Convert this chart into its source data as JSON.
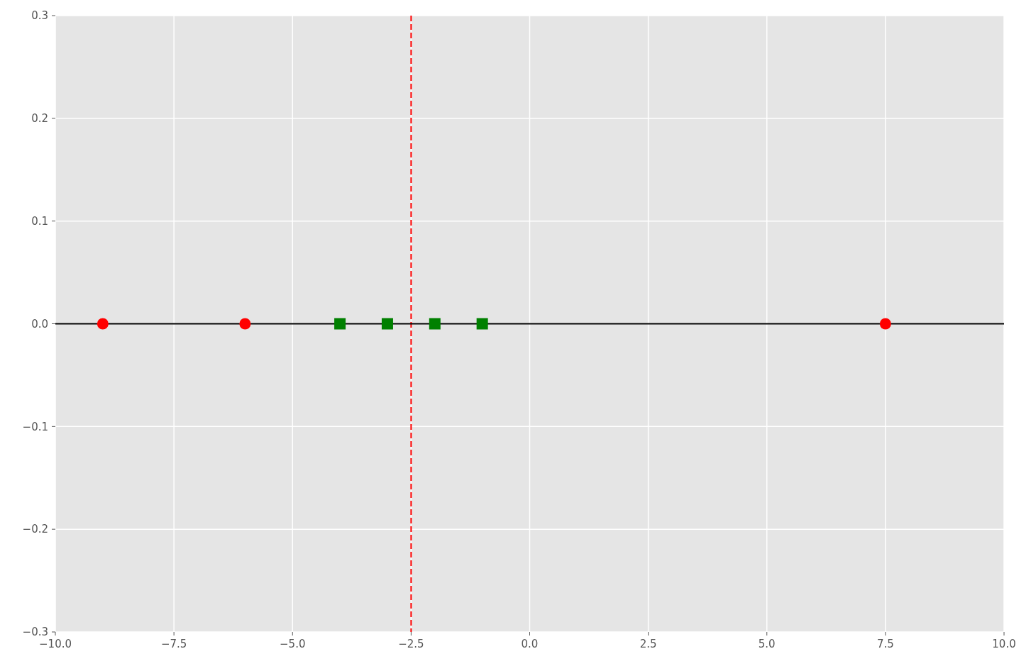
{
  "chart_data": {
    "type": "scatter",
    "series": [
      {
        "color": "#ff0000",
        "marker": "circle",
        "x": [
          -9,
          -6,
          7.5
        ],
        "values": [
          0,
          0,
          0
        ]
      },
      {
        "color": "#008000",
        "marker": "square",
        "x": [
          -4,
          -3,
          -2,
          -1
        ],
        "values": [
          0,
          0,
          0,
          0
        ]
      }
    ],
    "xlim": [
      -10,
      10
    ],
    "xticks": [
      {
        "value": -10,
        "label": "−10.0"
      },
      {
        "value": -7.5,
        "label": "−7.5"
      },
      {
        "value": -5,
        "label": "−5.0"
      },
      {
        "value": -2.5,
        "label": "−2.5"
      },
      {
        "value": 0,
        "label": "0.0"
      },
      2.5,
      {
        "value": 5,
        "label": "5.0"
      },
      7.5,
      {
        "value": 10,
        "label": "10.0"
      }
    ],
    "ylim": [
      -0.3,
      0.3
    ],
    "yticks": [
      {
        "value": -0.3,
        "label": "−0.3"
      },
      {
        "value": -0.2,
        "label": "−0.2"
      },
      {
        "value": -0.1,
        "label": "−0.1"
      },
      {
        "value": 0,
        "label": "0.0"
      },
      0.1,
      0.2,
      0.3
    ],
    "grid": true,
    "ref_lines": [
      {
        "axis": "x",
        "value": -2.5,
        "color": "#ff0000",
        "line_style": "dashed"
      },
      {
        "axis": "y",
        "value": 0,
        "color": "#000000",
        "line_style": "solid"
      }
    ]
  }
}
